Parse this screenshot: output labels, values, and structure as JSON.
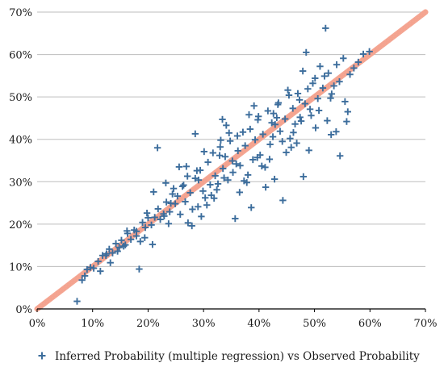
{
  "chart_data": {
    "type": "scatter",
    "title": "",
    "xlabel": "",
    "ylabel": "",
    "xlim": [
      0,
      70
    ],
    "ylim": [
      0,
      70
    ],
    "x_ticks": [
      "0%",
      "10%",
      "20%",
      "30%",
      "40%",
      "50%",
      "60%",
      "70%"
    ],
    "y_ticks": [
      "0%",
      "10%",
      "20%",
      "30%",
      "40%",
      "50%",
      "60%",
      "70%"
    ],
    "grid": "horizontal",
    "legend_position": "bottom",
    "colors": {
      "scatter": "#3c6d9c",
      "diagonal": "#f4a38f",
      "grid": "#bdbdbd",
      "axis": "#000000"
    },
    "series": [
      {
        "name": "Inferred Probability (multiple regression) vs Observed Probability",
        "marker": "plus",
        "x": [
          7.2,
          8.1,
          9.0,
          9.6,
          10.2,
          11.0,
          11.8,
          12.5,
          13.0,
          13.6,
          14.2,
          14.8,
          15.2,
          15.9,
          16.3,
          16.9,
          17.5,
          17.9,
          18.4,
          19.0,
          19.5,
          20.0,
          20.6,
          21.2,
          21.8,
          22.2,
          22.8,
          23.3,
          23.9,
          24.4,
          24.9,
          25.3,
          25.8,
          26.2,
          26.7,
          27.1,
          27.6,
          28.0,
          28.5,
          29.0,
          29.4,
          29.9,
          30.3,
          30.8,
          31.2,
          31.7,
          32.1,
          32.6,
          33.0,
          33.5,
          33.9,
          34.4,
          34.8,
          35.3,
          35.7,
          36.2,
          36.6,
          37.1,
          37.5,
          38.0,
          38.4,
          38.9,
          39.3,
          39.8,
          40.2,
          40.7,
          41.1,
          41.6,
          42.0,
          42.5,
          42.9,
          43.4,
          43.8,
          44.3,
          44.7,
          45.2,
          45.6,
          46.1,
          46.5,
          47.0,
          47.4,
          47.9,
          48.3,
          48.8,
          49.2,
          49.7,
          50.1,
          50.6,
          51.0,
          51.5,
          52.0,
          52.5,
          53.0,
          53.5,
          54.0,
          54.6,
          55.2,
          55.8,
          56.4,
          57.1,
          57.9,
          58.8,
          59.9,
          8.6,
          12.4,
          17.9,
          21.7,
          23.2,
          25.6,
          28.5,
          29.1,
          31.9,
          33.4,
          35.2,
          36.1,
          38.6,
          41.2,
          43.5,
          44.9,
          48.0,
          50.2,
          52.3,
          54.5,
          55.5,
          19.4,
          24.6,
          27.2,
          30.6,
          32.9,
          34.1,
          37.8,
          39.7,
          42.3,
          45.8,
          47.3,
          49.4,
          51.8,
          53.9,
          14.5,
          16.2,
          20.8,
          22.9,
          26.4,
          28.8,
          31.4,
          33.7,
          35.9,
          38.2,
          40.5,
          42.8,
          44.2,
          46.8,
          49.0,
          13.2,
          18.6,
          21.0,
          24.1,
          27.9,
          30.1,
          32.4,
          34.6,
          37.3,
          39.1,
          41.9,
          43.2,
          45.4,
          47.6,
          50.8,
          53.1,
          11.4,
          15.6,
          19.8,
          23.7,
          26.9,
          29.6,
          33.1,
          36.5,
          39.9,
          42.6,
          46.2,
          48.5,
          52.9,
          56.0
        ],
        "y": [
          1.8,
          6.8,
          9.3,
          9.8,
          9.6,
          11.2,
          12.6,
          13.0,
          14.1,
          13.2,
          15.4,
          14.5,
          16.2,
          15.1,
          17.8,
          16.4,
          18.6,
          17.2,
          9.4,
          20.4,
          19.2,
          21.5,
          19.8,
          21.6,
          23.6,
          21.1,
          22.4,
          25.2,
          22.9,
          27.1,
          24.8,
          26.6,
          22.3,
          28.9,
          25.3,
          31.3,
          27.4,
          23.5,
          30.8,
          24.1,
          32.7,
          27.8,
          26.2,
          34.6,
          29.3,
          36.8,
          31.4,
          29.5,
          38.2,
          33.1,
          35.9,
          30.4,
          39.6,
          32.2,
          21.3,
          37.3,
          33.8,
          41.7,
          38.5,
          31.6,
          42.4,
          35.2,
          39.9,
          44.6,
          36.3,
          41.2,
          33.4,
          46.7,
          38.8,
          40.6,
          43.5,
          48.2,
          41.9,
          25.6,
          44.8,
          51.6,
          40.2,
          47.3,
          43.6,
          50.8,
          45.2,
          56.1,
          48.4,
          51.9,
          47.1,
          53.2,
          54.4,
          49.6,
          57.2,
          52.1,
          66.2,
          55.6,
          41.1,
          52.6,
          57.6,
          36.1,
          59.1,
          44.2,
          55.3,
          56.8,
          58.2,
          60.1,
          60.7,
          7.8,
          12.6,
          18.3,
          38.0,
          29.7,
          33.5,
          41.3,
          30.4,
          26.1,
          44.7,
          34.9,
          40.8,
          23.9,
          28.7,
          48.6,
          36.9,
          31.2,
          42.7,
          44.4,
          53.6,
          48.9,
          16.8,
          28.4,
          20.3,
          24.5,
          36.2,
          43.3,
          29.8,
          35.7,
          43.9,
          38.1,
          49.3,
          45.6,
          54.9,
          41.8,
          13.6,
          18.4,
          15.2,
          21.9,
          29.2,
          32.6,
          26.8,
          30.9,
          34.2,
          45.8,
          33.7,
          30.6,
          39.5,
          39.1,
          37.4,
          10.9,
          15.9,
          27.6,
          24.9,
          19.6,
          37.1,
          28.1,
          41.5,
          30.2,
          47.9,
          35.3,
          45.1,
          50.4,
          44.3,
          46.8,
          50.7,
          8.9,
          14.8,
          22.6,
          20.1,
          33.6,
          21.8,
          39.8,
          27.5,
          45.4,
          46.1,
          41.6,
          60.5,
          49.7,
          46.5
        ]
      }
    ]
  }
}
